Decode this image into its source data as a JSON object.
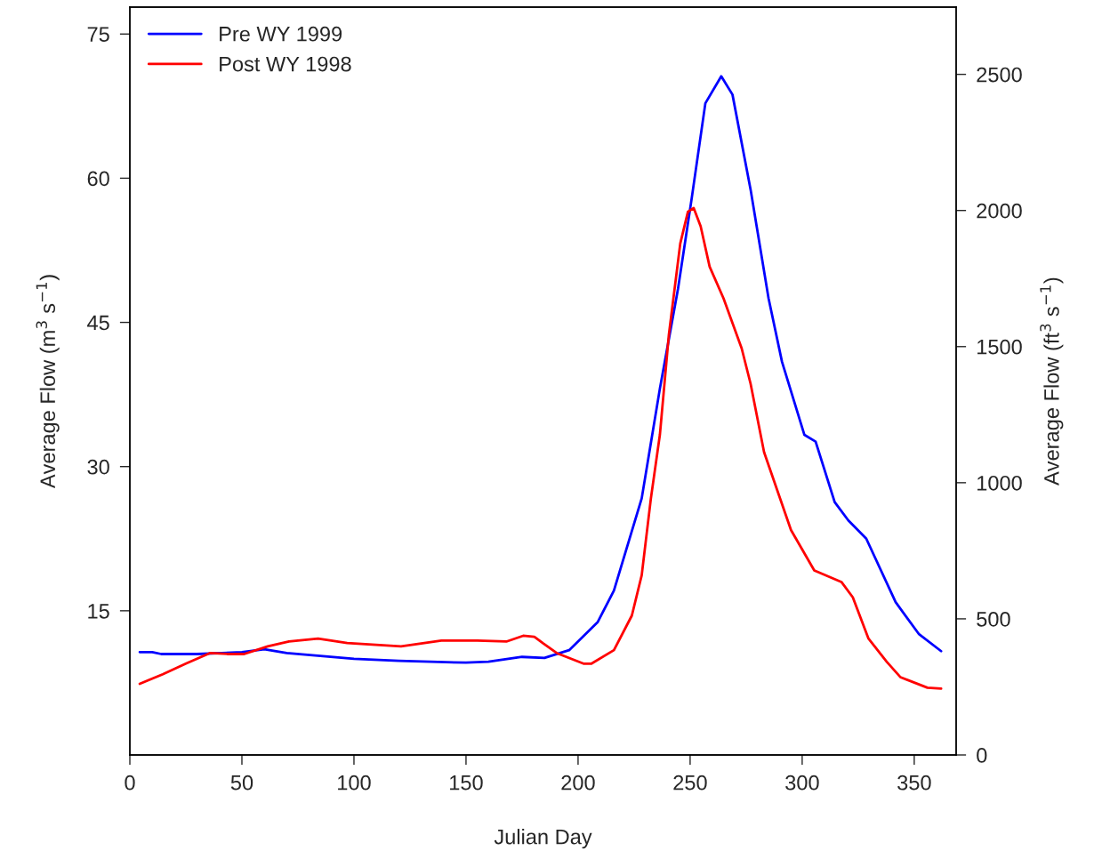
{
  "chart_data": {
    "type": "line",
    "xlabel": "Julian Day",
    "ylabel": "Average Flow (m$^{3}$ s$^{−1}$)",
    "y2label": "Average Flow (ft$^{3}$ s$^{−1}$)",
    "xlim": [
      0,
      368.7
    ],
    "xticks": [
      0,
      50,
      100,
      150,
      200,
      250,
      300,
      350
    ],
    "ylim": [
      0,
      77.8
    ],
    "yticks": [
      15,
      30,
      45,
      60,
      75
    ],
    "y2lim": [
      0,
      2747
    ],
    "y2ticks": [
      0,
      500,
      1000,
      1500,
      2000,
      2500
    ],
    "grid": false,
    "legend": "top left",
    "line_style": "solid",
    "marker": "none",
    "series": [
      {
        "name": "Pre WY 1999",
        "color": "#0000ff",
        "x": [
          4.4,
          10,
          14,
          30,
          50,
          60,
          70,
          85,
          100,
          120,
          150,
          160,
          175,
          185,
          196,
          208.7,
          216,
          228.4,
          236.5,
          244.6,
          250.7,
          256.8,
          263.9,
          268.9,
          277,
          285,
          291,
          301,
          306,
          314.5,
          320.6,
          328.6,
          341.7,
          352,
          362
        ],
        "values": [
          10.7,
          10.7,
          10.5,
          10.5,
          10.7,
          11.0,
          10.6,
          10.3,
          10.0,
          9.8,
          9.6,
          9.7,
          10.2,
          10.1,
          10.9,
          13.8,
          17.1,
          26.7,
          38.1,
          48.5,
          57.9,
          67.8,
          70.6,
          68.7,
          58.8,
          47.5,
          40.9,
          33.3,
          32.6,
          26.3,
          24.4,
          22.5,
          15.9,
          12.6,
          10.8
        ]
      },
      {
        "name": "Post WY 1998",
        "color": "#ff0000",
        "x": [
          4.4,
          14.7,
          25,
          35.7,
          44,
          51,
          61.5,
          71,
          84,
          97,
          121,
          139,
          155,
          168,
          175.5,
          180.5,
          184.5,
          190.5,
          202.4,
          206,
          216,
          224,
          228.4,
          232.5,
          236.5,
          240.5,
          245.6,
          249,
          251.6,
          254.7,
          258.7,
          264.9,
          273,
          277,
          283,
          295,
          305.4,
          317.5,
          322.6,
          329.6,
          337.7,
          343.8,
          355.9,
          362
        ],
        "values": [
          7.4,
          8.4,
          9.5,
          10.6,
          10.5,
          10.5,
          11.3,
          11.8,
          12.1,
          11.65,
          11.3,
          11.9,
          11.9,
          11.8,
          12.4,
          12.3,
          11.6,
          10.6,
          9.5,
          9.5,
          10.9,
          14.5,
          18.7,
          26.7,
          33.3,
          43.7,
          53.2,
          56.5,
          56.9,
          55.0,
          50.8,
          47.5,
          42.3,
          38.6,
          31.5,
          23.4,
          19.2,
          18.0,
          16.4,
          12.1,
          9.7,
          8.1,
          7.0,
          6.9
        ]
      }
    ]
  }
}
